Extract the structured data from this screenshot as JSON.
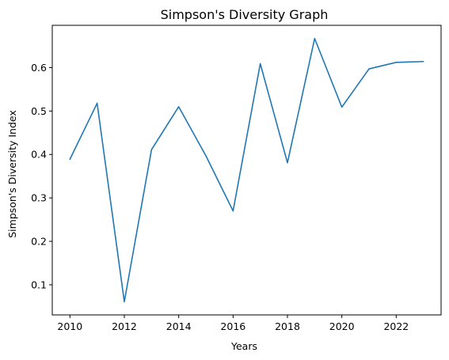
{
  "chart_data": {
    "type": "line",
    "title": "Simpson's Diversity Graph",
    "xlabel": "Years",
    "ylabel": "Simpson's Diversity Index",
    "x": [
      2010,
      2011,
      2012,
      2013,
      2014,
      2015,
      2016,
      2017,
      2018,
      2019,
      2020,
      2021,
      2022,
      2023
    ],
    "series": [
      {
        "values": [
          0.389,
          0.518,
          0.061,
          0.411,
          0.51,
          0.397,
          0.27,
          0.609,
          0.381,
          0.667,
          0.509,
          0.597,
          0.612,
          0.614
        ]
      }
    ],
    "xlim": [
      2009.35,
      2023.65
    ],
    "ylim": [
      0.0307,
      0.6973
    ],
    "xticks": [
      2010,
      2012,
      2014,
      2016,
      2018,
      2020,
      2022
    ],
    "yticks": [
      0.1,
      0.2,
      0.3,
      0.4,
      0.5,
      0.6
    ],
    "xtick_labels": [
      "2010",
      "2012",
      "2014",
      "2016",
      "2018",
      "2020",
      "2022"
    ],
    "ytick_labels": [
      "0.1",
      "0.2",
      "0.3",
      "0.4",
      "0.5",
      "0.6"
    ],
    "grid": false,
    "legend": "none",
    "line_color": "#1f77b4"
  }
}
